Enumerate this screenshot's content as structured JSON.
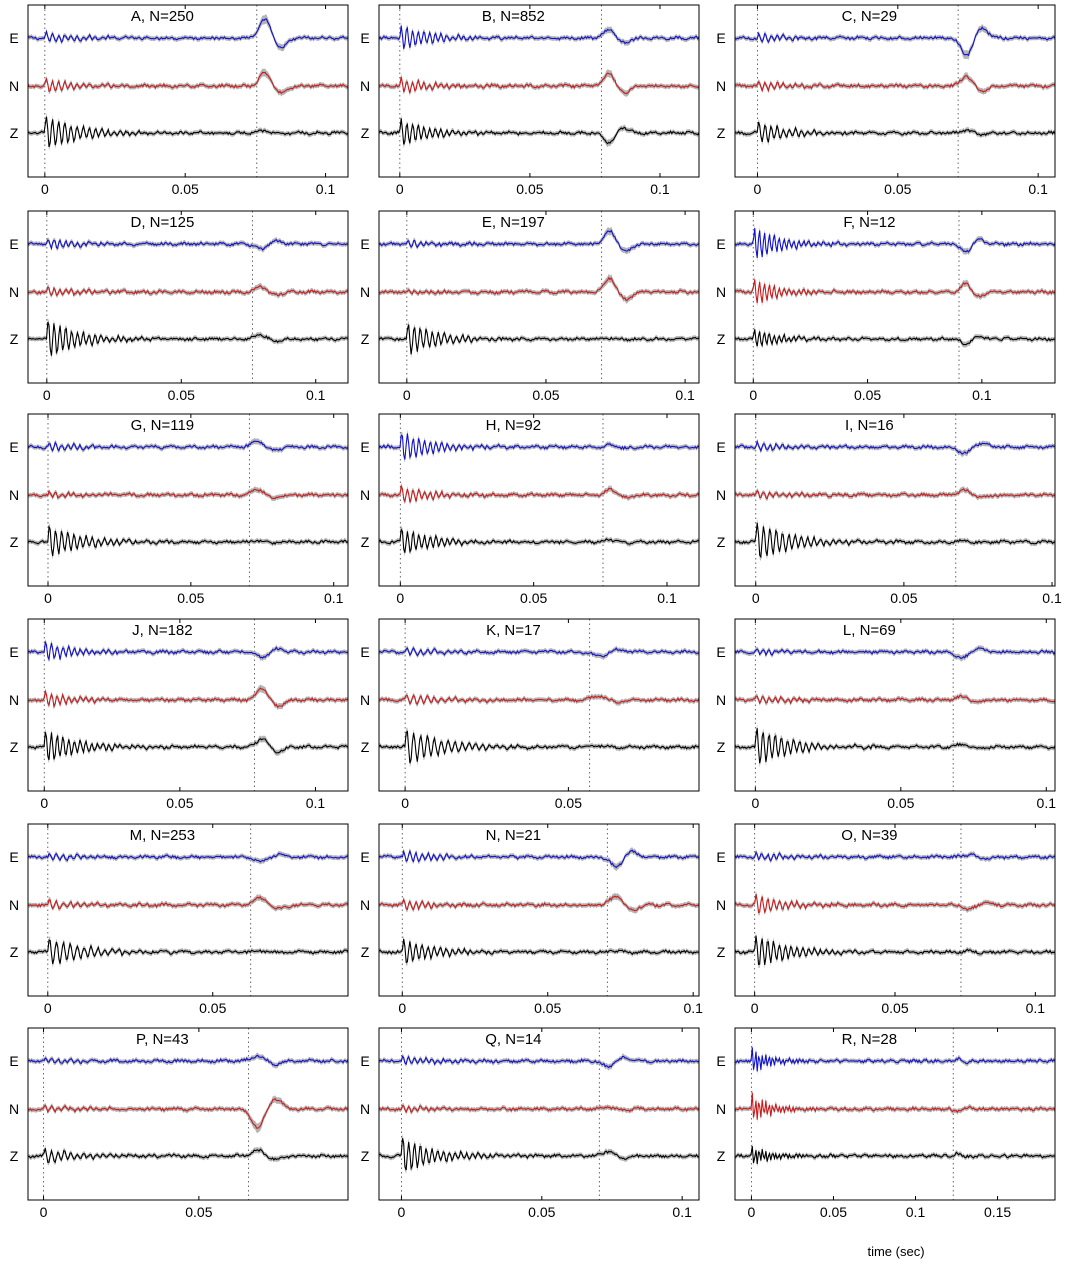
{
  "figure": {
    "channels": [
      "E",
      "N",
      "Z"
    ],
    "channel_colors": {
      "E": "#1010d0",
      "N": "#cc1a1a",
      "Z": "#000000"
    },
    "envelope_color": "#b4b4b4",
    "marker_style": "dotted vertical lines at t=0 and at the second arrival",
    "xlabel": "time (sec)"
  },
  "chart_data": [
    {
      "type": "line",
      "id": "A",
      "title": "A, N=250",
      "xlim": [
        -0.006,
        0.108
      ],
      "xticks": [
        0,
        0.05,
        0.1
      ],
      "xtick_labels": [
        "0",
        "0.05",
        "0.1"
      ],
      "markers": [
        0,
        0.0755
      ],
      "series": [
        {
          "name": "E",
          "onset": 0.0755,
          "amp": 1.7,
          "pol": 1,
          "early": 0.5
        },
        {
          "name": "N",
          "onset": 0.0755,
          "amp": 1.2,
          "pol": 1,
          "early": 0.6
        },
        {
          "name": "Z",
          "onset": 0.0755,
          "amp": 0.2,
          "pol": 1,
          "early": 1.6
        }
      ]
    },
    {
      "type": "line",
      "id": "B",
      "title": "B, N=852",
      "xlim": [
        -0.008,
        0.115
      ],
      "xticks": [
        0,
        0.05,
        0.1
      ],
      "xtick_labels": [
        "0",
        "0.05",
        "0.1"
      ],
      "markers": [
        0,
        0.0775
      ],
      "series": [
        {
          "name": "E",
          "onset": 0.0775,
          "amp": 0.8,
          "pol": 1,
          "early": 1.2
        },
        {
          "name": "N",
          "onset": 0.0775,
          "amp": 1.2,
          "pol": 1,
          "early": 0.7
        },
        {
          "name": "Z",
          "onset": 0.0775,
          "amp": 0.9,
          "pol": -1,
          "early": 1.3
        }
      ]
    },
    {
      "type": "line",
      "id": "C",
      "title": "C, N=29",
      "xlim": [
        -0.008,
        0.106
      ],
      "xticks": [
        0,
        0.05,
        0.1
      ],
      "xtick_labels": [
        "0",
        "0.05",
        "0.1"
      ],
      "markers": [
        0,
        0.0715
      ],
      "series": [
        {
          "name": "E",
          "onset": 0.0715,
          "amp": 1.6,
          "pol": -1,
          "early": 0.4
        },
        {
          "name": "N",
          "onset": 0.0715,
          "amp": 0.9,
          "pol": 1,
          "early": 0.4
        },
        {
          "name": "Z",
          "onset": 0.0715,
          "amp": 0.2,
          "pol": 1,
          "early": 1.0
        }
      ]
    },
    {
      "type": "line",
      "id": "D",
      "title": "D, N=125",
      "xlim": [
        -0.007,
        0.112
      ],
      "xticks": [
        0,
        0.05,
        0.1
      ],
      "xtick_labels": [
        "0",
        "0.05",
        "0.1"
      ],
      "markers": [
        0,
        0.0765
      ],
      "series": [
        {
          "name": "E",
          "onset": 0.0765,
          "amp": 0.5,
          "pol": -1,
          "early": 0.5
        },
        {
          "name": "N",
          "onset": 0.0765,
          "amp": 0.5,
          "pol": 1,
          "early": 0.5
        },
        {
          "name": "Z",
          "onset": 0.0765,
          "amp": 0.4,
          "pol": 1,
          "early": 1.8
        }
      ]
    },
    {
      "type": "line",
      "id": "E",
      "title": "E, N=197",
      "xlim": [
        -0.01,
        0.105
      ],
      "xticks": [
        0,
        0.05,
        0.1
      ],
      "xtick_labels": [
        "0",
        "0.05",
        "0.1"
      ],
      "markers": [
        0,
        0.07
      ],
      "series": [
        {
          "name": "E",
          "onset": 0.07,
          "amp": 1.2,
          "pol": 1,
          "early": 0.3
        },
        {
          "name": "N",
          "onset": 0.07,
          "amp": 1.3,
          "pol": 1,
          "early": 0.2
        },
        {
          "name": "Z",
          "onset": 0.07,
          "amp": 0.1,
          "pol": 1,
          "early": 1.5
        }
      ]
    },
    {
      "type": "line",
      "id": "F",
      "title": "F, N=12",
      "xlim": [
        -0.008,
        0.132
      ],
      "xticks": [
        0,
        0.05,
        0.1
      ],
      "xtick_labels": [
        "0",
        "0.05",
        "0.1"
      ],
      "markers": [
        0,
        0.09
      ],
      "series": [
        {
          "name": "E",
          "onset": 0.09,
          "amp": 0.8,
          "pol": -1,
          "early": 1.6
        },
        {
          "name": "N",
          "onset": 0.09,
          "amp": 0.8,
          "pol": 1,
          "early": 1.2
        },
        {
          "name": "Z",
          "onset": 0.09,
          "amp": 0.5,
          "pol": -1,
          "early": 0.9
        }
      ]
    },
    {
      "type": "line",
      "id": "G",
      "title": "G, N=119",
      "xlim": [
        -0.007,
        0.105
      ],
      "xticks": [
        0,
        0.05,
        0.1
      ],
      "xtick_labels": [
        "0",
        "0.05",
        "0.1"
      ],
      "markers": [
        0,
        0.0705
      ],
      "series": [
        {
          "name": "E",
          "onset": 0.0705,
          "amp": 0.6,
          "pol": 1,
          "early": 0.4
        },
        {
          "name": "N",
          "onset": 0.0705,
          "amp": 0.5,
          "pol": 1,
          "early": 0.3
        },
        {
          "name": "Z",
          "onset": 0.0705,
          "amp": 0.1,
          "pol": 1,
          "early": 1.5
        }
      ]
    },
    {
      "type": "line",
      "id": "H",
      "title": "H, N=92",
      "xlim": [
        -0.008,
        0.112
      ],
      "xticks": [
        0,
        0.05,
        0.1
      ],
      "xtick_labels": [
        "0",
        "0.05",
        "0.1"
      ],
      "markers": [
        0,
        0.076
      ],
      "series": [
        {
          "name": "E",
          "onset": 0.076,
          "amp": 0.2,
          "pol": 1,
          "early": 1.4
        },
        {
          "name": "N",
          "onset": 0.076,
          "amp": 0.5,
          "pol": 1,
          "early": 0.8
        },
        {
          "name": "Z",
          "onset": 0.076,
          "amp": 0.2,
          "pol": 1,
          "early": 1.3
        }
      ]
    },
    {
      "type": "line",
      "id": "I",
      "title": "I, N=16",
      "xlim": [
        -0.007,
        0.101
      ],
      "xticks": [
        0,
        0.05,
        0.1
      ],
      "xtick_labels": [
        "0",
        "0.05",
        "0.1"
      ],
      "markers": [
        0,
        0.0675
      ],
      "series": [
        {
          "name": "E",
          "onset": 0.0675,
          "amp": 0.6,
          "pol": -1,
          "early": 0.4
        },
        {
          "name": "N",
          "onset": 0.0675,
          "amp": 0.4,
          "pol": 1,
          "early": 0.3
        },
        {
          "name": "Z",
          "onset": 0.0675,
          "amp": 0.1,
          "pol": 1,
          "early": 1.8
        }
      ]
    },
    {
      "type": "line",
      "id": "J",
      "title": "J, N=182",
      "xlim": [
        -0.006,
        0.112
      ],
      "xticks": [
        0,
        0.05,
        0.1
      ],
      "xtick_labels": [
        "0",
        "0.05",
        "0.1"
      ],
      "markers": [
        0,
        0.0775
      ],
      "series": [
        {
          "name": "E",
          "onset": 0.0775,
          "amp": 0.5,
          "pol": -1,
          "early": 0.9
        },
        {
          "name": "N",
          "onset": 0.0775,
          "amp": 1.1,
          "pol": 1,
          "early": 0.7
        },
        {
          "name": "Z",
          "onset": 0.0775,
          "amp": 0.8,
          "pol": 1,
          "early": 1.6
        }
      ]
    },
    {
      "type": "line",
      "id": "K",
      "title": "K, N=17",
      "xlim": [
        -0.008,
        0.09
      ],
      "xticks": [
        0,
        0.05
      ],
      "xtick_labels": [
        "0",
        "0.05"
      ],
      "markers": [
        0,
        0.0565
      ],
      "series": [
        {
          "name": "E",
          "onset": 0.0565,
          "amp": 0.4,
          "pol": -1,
          "early": 0.3
        },
        {
          "name": "N",
          "onset": 0.0565,
          "amp": 0.4,
          "pol": 1,
          "early": 0.5
        },
        {
          "name": "Z",
          "onset": 0.0565,
          "amp": 0.1,
          "pol": 1,
          "early": 1.7
        }
      ]
    },
    {
      "type": "line",
      "id": "L",
      "title": "L, N=69",
      "xlim": [
        -0.007,
        0.103
      ],
      "xticks": [
        0,
        0.05,
        0.1
      ],
      "xtick_labels": [
        "0",
        "0.05",
        "0.1"
      ],
      "markers": [
        0,
        0.068
      ],
      "series": [
        {
          "name": "E",
          "onset": 0.068,
          "amp": 0.6,
          "pol": -1,
          "early": 0.3
        },
        {
          "name": "N",
          "onset": 0.068,
          "amp": 0.3,
          "pol": 1,
          "early": 0.4
        },
        {
          "name": "Z",
          "onset": 0.068,
          "amp": 0.2,
          "pol": 1,
          "early": 1.8
        }
      ]
    },
    {
      "type": "line",
      "id": "M",
      "title": "M, N=253",
      "xlim": [
        -0.006,
        0.091
      ],
      "xticks": [
        0,
        0.05
      ],
      "xtick_labels": [
        "0",
        "0.05"
      ],
      "markers": [
        0,
        0.0615
      ],
      "series": [
        {
          "name": "E",
          "onset": 0.0615,
          "amp": 0.4,
          "pol": -1,
          "early": 0.3
        },
        {
          "name": "N",
          "onset": 0.0615,
          "amp": 0.6,
          "pol": 1,
          "early": 0.4
        },
        {
          "name": "Z",
          "onset": 0.0615,
          "amp": 0.1,
          "pol": 1,
          "early": 1.3
        }
      ]
    },
    {
      "type": "line",
      "id": "N",
      "title": "N, N=21",
      "xlim": [
        -0.008,
        0.102
      ],
      "xticks": [
        0,
        0.05,
        0.1
      ],
      "xtick_labels": [
        "0",
        "0.05",
        "0.1"
      ],
      "markers": [
        0,
        0.0705
      ],
      "series": [
        {
          "name": "E",
          "onset": 0.0705,
          "amp": 0.9,
          "pol": -1,
          "early": 0.6
        },
        {
          "name": "N",
          "onset": 0.0705,
          "amp": 0.8,
          "pol": 1,
          "early": 0.5
        },
        {
          "name": "Z",
          "onset": 0.0705,
          "amp": 0.1,
          "pol": 1,
          "early": 1.2
        }
      ]
    },
    {
      "type": "line",
      "id": "O",
      "title": "O, N=39",
      "xlim": [
        -0.007,
        0.107
      ],
      "xticks": [
        0,
        0.05,
        0.1
      ],
      "xtick_labels": [
        "0",
        "0.05",
        "0.1"
      ],
      "markers": [
        0,
        0.0735
      ],
      "series": [
        {
          "name": "E",
          "onset": 0.0735,
          "amp": 0.2,
          "pol": 1,
          "early": 0.4
        },
        {
          "name": "N",
          "onset": 0.0735,
          "amp": 0.4,
          "pol": -1,
          "early": 0.9
        },
        {
          "name": "Z",
          "onset": 0.0735,
          "amp": 0.1,
          "pol": 1,
          "early": 1.6
        }
      ]
    },
    {
      "type": "line",
      "id": "P",
      "title": "P, N=43",
      "xlim": [
        -0.005,
        0.098
      ],
      "xticks": [
        0,
        0.05
      ],
      "xtick_labels": [
        "0",
        "0.05"
      ],
      "markers": [
        0,
        0.066
      ],
      "series": [
        {
          "name": "E",
          "onset": 0.066,
          "amp": 0.5,
          "pol": 1,
          "early": 0.3
        },
        {
          "name": "N",
          "onset": 0.066,
          "amp": 1.7,
          "pol": -1,
          "early": 0.3
        },
        {
          "name": "Z",
          "onset": 0.066,
          "amp": 0.5,
          "pol": 1,
          "early": 0.7
        }
      ]
    },
    {
      "type": "line",
      "id": "Q",
      "title": "Q, N=14",
      "xlim": [
        -0.008,
        0.106
      ],
      "xticks": [
        0,
        0.05,
        0.1
      ],
      "xtick_labels": [
        "0",
        "0.05",
        "0.1"
      ],
      "markers": [
        0,
        0.0705
      ],
      "series": [
        {
          "name": "E",
          "onset": 0.0705,
          "amp": 0.5,
          "pol": -1,
          "early": 0.4
        },
        {
          "name": "N",
          "onset": 0.0705,
          "amp": 0.2,
          "pol": 1,
          "early": 0.3
        },
        {
          "name": "Z",
          "onset": 0.0705,
          "amp": 0.4,
          "pol": 1,
          "early": 1.7
        }
      ]
    },
    {
      "type": "line",
      "id": "R",
      "title": "R, N=28",
      "xlim": [
        -0.01,
        0.185
      ],
      "xticks": [
        0,
        0.05,
        0.1,
        0.15
      ],
      "xtick_labels": [
        "0",
        "0.05",
        "0.1",
        "0.15"
      ],
      "markers": [
        0,
        0.123
      ],
      "series": [
        {
          "name": "E",
          "onset": 0.123,
          "amp": 0.2,
          "pol": 1,
          "early": 1.2
        },
        {
          "name": "N",
          "onset": 0.123,
          "amp": 0.3,
          "pol": -1,
          "early": 1.4
        },
        {
          "name": "Z",
          "onset": 0.123,
          "amp": 0.2,
          "pol": 1,
          "early": 1.0
        }
      ]
    }
  ]
}
